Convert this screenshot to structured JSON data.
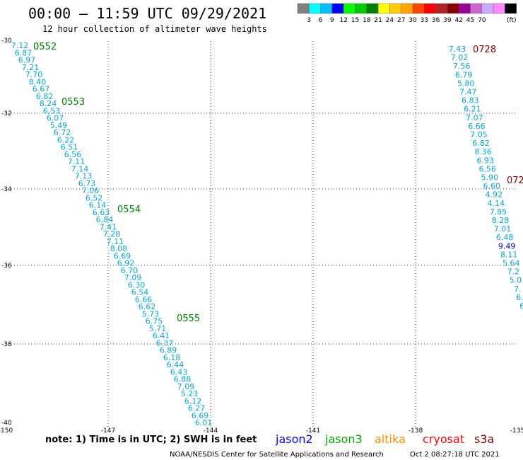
{
  "header": {
    "title": "00:00 – 11:59 UTC 09/29/2021",
    "subtitle": "12 hour collection of altimeter wave heights"
  },
  "legend": {
    "colors": [
      "#808080",
      "#00ffff",
      "#00bfff",
      "#0000ff",
      "#00ff00",
      "#00cc00",
      "#008000",
      "#ffff00",
      "#ffcc00",
      "#ffa500",
      "#ff4500",
      "#ff0000",
      "#b22222",
      "#8b0000",
      "#990099",
      "#cc66cc",
      "#ccaaff",
      "#ff88ff",
      "#000000"
    ],
    "labels": [
      "3",
      "6",
      "9",
      "12",
      "15",
      "18",
      "21",
      "24",
      "27",
      "30",
      "33",
      "36",
      "39",
      "42",
      "45",
      "70"
    ],
    "unit": "(ft)"
  },
  "axes": {
    "lat_labels": [
      "-30",
      "-32",
      "-34",
      "-36",
      "-38",
      "-40"
    ],
    "lon_labels": [
      "-150",
      "-147",
      "-144",
      "-141",
      "-138",
      "-135"
    ]
  },
  "time_labels": [
    {
      "text": "0552",
      "color": "#008000"
    },
    {
      "text": "0553",
      "color": "#008000"
    },
    {
      "text": "0554",
      "color": "#008000"
    },
    {
      "text": "0555",
      "color": "#008000"
    },
    {
      "text": "0728",
      "color": "#8b0000"
    },
    {
      "text": "072",
      "color": "#8b0000"
    }
  ],
  "track1": {
    "color": "#00a8d8",
    "values": [
      "7.12",
      "6.87",
      "6.97",
      "7.21",
      "7.70",
      "8.40",
      "6.67",
      "6.82",
      "8.24",
      "6.53",
      "6.07",
      "5.49",
      "6.72",
      "6.22",
      "6.51",
      "6.56",
      "7.11",
      "7.14",
      "7.13",
      "6.73",
      "7.06",
      "6.52",
      "6.14",
      "6.63",
      "6.84",
      "7.41",
      "7.28",
      "7.11",
      "8.08",
      "6.69",
      "6.92",
      "6.70",
      "7.09",
      "6.30",
      "6.54",
      "6.66",
      "6.62",
      "5.73",
      "6.75",
      "5.71",
      "6.41",
      "6.37",
      "6.89",
      "6.18",
      "6.44",
      "6.43",
      "6.88",
      "7.09",
      "5.23",
      "6.12",
      "6.27",
      "6.69",
      "6.01"
    ]
  },
  "track2": {
    "color": "#00a8d8",
    "values": [
      "7.43",
      "7.02",
      "7.56",
      "6.79",
      "5.80",
      "7.47",
      "6.83",
      "6.21",
      "7.07",
      "6.66",
      "7.05",
      "6.82",
      "8.36",
      "6.93",
      "6.56",
      "5.90",
      "6.60",
      "4.92",
      "4.14",
      "7.85",
      "8.28",
      "7.01",
      "6.48",
      "9.49",
      "8.11",
      "5.64",
      "7.2",
      "5.0",
      "7.",
      "6.",
      "6"
    ],
    "highlight_color": "#0000cc"
  },
  "footer": {
    "satellites": [
      {
        "name": "jason2",
        "color": "#0000ff"
      },
      {
        "name": "jason3",
        "color": "#00aa00"
      },
      {
        "name": "altika",
        "color": "#ff8c00"
      },
      {
        "name": "cryosat",
        "color": "#ff0000"
      },
      {
        "name": "s3a",
        "color": "#8b0000"
      }
    ],
    "note": "note: 1) Time is in UTC; 2) SWH is in feet",
    "credit": "NOAA/NESDIS Center for Satellite Applications and Research",
    "timestamp": "Oct 2 08:27:18 UTC 2021"
  }
}
